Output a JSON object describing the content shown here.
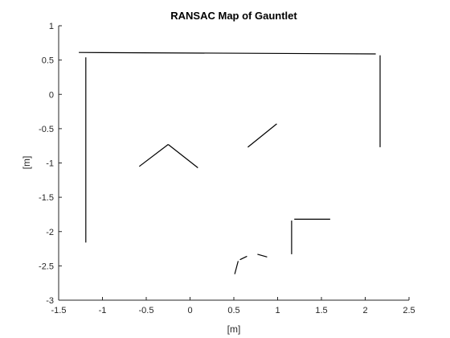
{
  "chart_data": {
    "type": "line",
    "title": "RANSAC Map of Gauntlet",
    "xlabel": "[m]",
    "ylabel": "[m]",
    "xlim": [
      -1.5,
      2.5
    ],
    "ylim": [
      -3,
      1
    ],
    "xticks": [
      -1.5,
      -1,
      -0.5,
      0,
      0.5,
      1,
      1.5,
      2,
      2.5
    ],
    "xtick_labels": [
      "-1.5",
      "-1",
      "-0.5",
      "0",
      "0.5",
      "1",
      "1.5",
      "2",
      "2.5"
    ],
    "yticks": [
      -3,
      -2.5,
      -2,
      -1.5,
      -1,
      -0.5,
      0,
      0.5,
      1
    ],
    "ytick_labels": [
      "-3",
      "-2.5",
      "-2",
      "-1.5",
      "-1",
      "-0.5",
      "0",
      "0.5",
      "1"
    ],
    "grid": false,
    "line_color": "#000000",
    "axis_color": "#262626",
    "segments": [
      {
        "x": [
          -1.27,
          2.12
        ],
        "y": [
          0.61,
          0.59
        ]
      },
      {
        "x": [
          -1.19,
          -1.19
        ],
        "y": [
          0.54,
          -2.16
        ]
      },
      {
        "x": [
          2.17,
          2.17
        ],
        "y": [
          0.57,
          -0.77
        ]
      },
      {
        "x": [
          -0.58,
          -0.25
        ],
        "y": [
          -1.05,
          -0.73
        ]
      },
      {
        "x": [
          -0.25,
          0.09
        ],
        "y": [
          -0.73,
          -1.07
        ]
      },
      {
        "x": [
          0.66,
          0.99
        ],
        "y": [
          -0.77,
          -0.43
        ]
      },
      {
        "x": [
          1.16,
          1.16
        ],
        "y": [
          -1.84,
          -2.33
        ]
      },
      {
        "x": [
          1.19,
          1.6
        ],
        "y": [
          -1.82,
          -1.82
        ]
      },
      {
        "x": [
          0.51,
          0.55
        ],
        "y": [
          -2.62,
          -2.43
        ]
      },
      {
        "x": [
          0.57,
          0.65
        ],
        "y": [
          -2.41,
          -2.36
        ]
      },
      {
        "x": [
          0.77,
          0.88
        ],
        "y": [
          -2.33,
          -2.37
        ]
      }
    ]
  }
}
